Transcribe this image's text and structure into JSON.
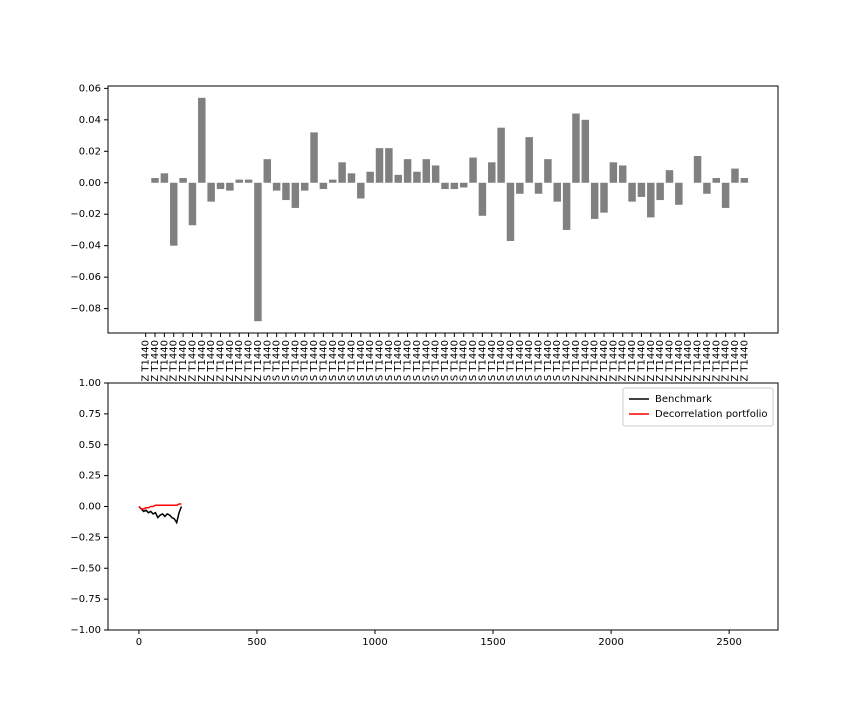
{
  "chart_data": [
    {
      "type": "bar",
      "color": "#808080",
      "categories": [
        "Z T1440",
        "Z T1440",
        "Z T1440",
        "Z T1440",
        "Z T1440",
        "Z T1440",
        "Z T1440",
        "Z T1440",
        "Z T1440",
        "Z T1440",
        "Z T1440",
        "Z T1440",
        "Z T1440",
        "S T1440",
        "S T1440",
        "S T1440",
        "S T1440",
        "S T1440",
        "S T1440",
        "S T1440",
        "S T1440",
        "S T1440",
        "S T1440",
        "S T1440",
        "S T1440",
        "S T1440",
        "S T1440",
        "S T1440",
        "S T1440",
        "S T1440",
        "S T1440",
        "S T1440",
        "S T1440",
        "S T1440",
        "S T1440",
        "S T1440",
        "S T1440",
        "S T1440",
        "S T1440",
        "S T1440",
        "S T1440",
        "S T1440",
        "S T1440",
        "S T1440",
        "S T1440",
        "S T1440",
        "Z T1440",
        "Z T1440",
        "Z T1440",
        "Z T1440",
        "Z T1440",
        "Z T1440",
        "Z T1440",
        "Z T1440",
        "Z T1440",
        "Z T1440",
        "Z T1440",
        "Z T1440",
        "Z T1440",
        "Z T1440",
        "Z T1440",
        "Z T1440",
        "Z T1440",
        "Z T1440",
        "Z T1440"
      ],
      "values": [
        0,
        0.003,
        0.006,
        -0.04,
        0.003,
        -0.027,
        0.054,
        -0.012,
        -0.004,
        -0.005,
        0.002,
        0.002,
        -0.088,
        0.015,
        -0.005,
        -0.011,
        -0.016,
        -0.005,
        0.032,
        -0.004,
        0.002,
        0.013,
        0.006,
        -0.01,
        0.007,
        0.022,
        0.022,
        0.005,
        0.015,
        0.007,
        0.015,
        0.011,
        -0.004,
        -0.004,
        -0.003,
        0.016,
        -0.021,
        0.013,
        0.035,
        -0.037,
        -0.007,
        0.029,
        -0.007,
        0.015,
        -0.012,
        -0.03,
        0.044,
        0.04,
        -0.023,
        -0.019,
        0.013,
        0.011,
        -0.012,
        -0.009,
        -0.022,
        -0.011,
        0.008,
        -0.014,
        0,
        0.017,
        -0.007,
        0.003,
        -0.016,
        0.009,
        0.003
      ],
      "ylim": [
        -0.0955,
        0.0615
      ],
      "yticks": [
        0.06,
        0.04,
        0.02,
        {
          "value": 0,
          "label": "0.00"
        },
        {
          "value": -0.02,
          "label": "−0.02"
        },
        {
          "value": -0.04,
          "label": "−0.04"
        },
        {
          "value": -0.06,
          "label": "−0.06"
        },
        {
          "value": -0.08,
          "label": "−0.08"
        }
      ]
    },
    {
      "type": "line",
      "x": [
        0,
        10,
        20,
        30,
        40,
        50,
        60,
        70,
        80,
        90,
        100,
        110,
        120,
        130,
        140,
        150,
        160,
        170,
        180
      ],
      "series": [
        {
          "name": "Benchmark",
          "color": "#000000",
          "values": [
            0,
            -0.02,
            -0.04,
            -0.03,
            -0.05,
            -0.04,
            -0.06,
            -0.05,
            -0.09,
            -0.07,
            -0.06,
            -0.08,
            -0.06,
            -0.07,
            -0.09,
            -0.1,
            -0.13,
            -0.05,
            0
          ]
        },
        {
          "name": "Decorrelation portfolio",
          "color": "#ff0000",
          "values": [
            0,
            -0.02,
            -0.02,
            -0.01,
            -0.01,
            0,
            0,
            0.01,
            0.01,
            0.01,
            0.01,
            0.01,
            0.01,
            0.01,
            0.01,
            0.01,
            0.01,
            0.02,
            0.02
          ]
        }
      ],
      "xlim": [
        -131,
        2707
      ],
      "xticks": [
        0,
        500,
        1000,
        1500,
        2000,
        2500
      ],
      "ylim": [
        -1,
        1
      ],
      "yticks": [
        {
          "value": 1,
          "label": "1.00"
        },
        {
          "value": 0.75,
          "label": "0.75"
        },
        {
          "value": 0.5,
          "label": "0.50"
        },
        0.25,
        {
          "value": 0,
          "label": "0.00"
        },
        {
          "value": -0.25,
          "label": "−0.25"
        },
        {
          "value": -0.5,
          "label": "−0.50"
        },
        {
          "value": -0.75,
          "label": "−0.75"
        },
        {
          "value": -1,
          "label": "−1.00"
        }
      ],
      "legend": "upper right"
    }
  ]
}
